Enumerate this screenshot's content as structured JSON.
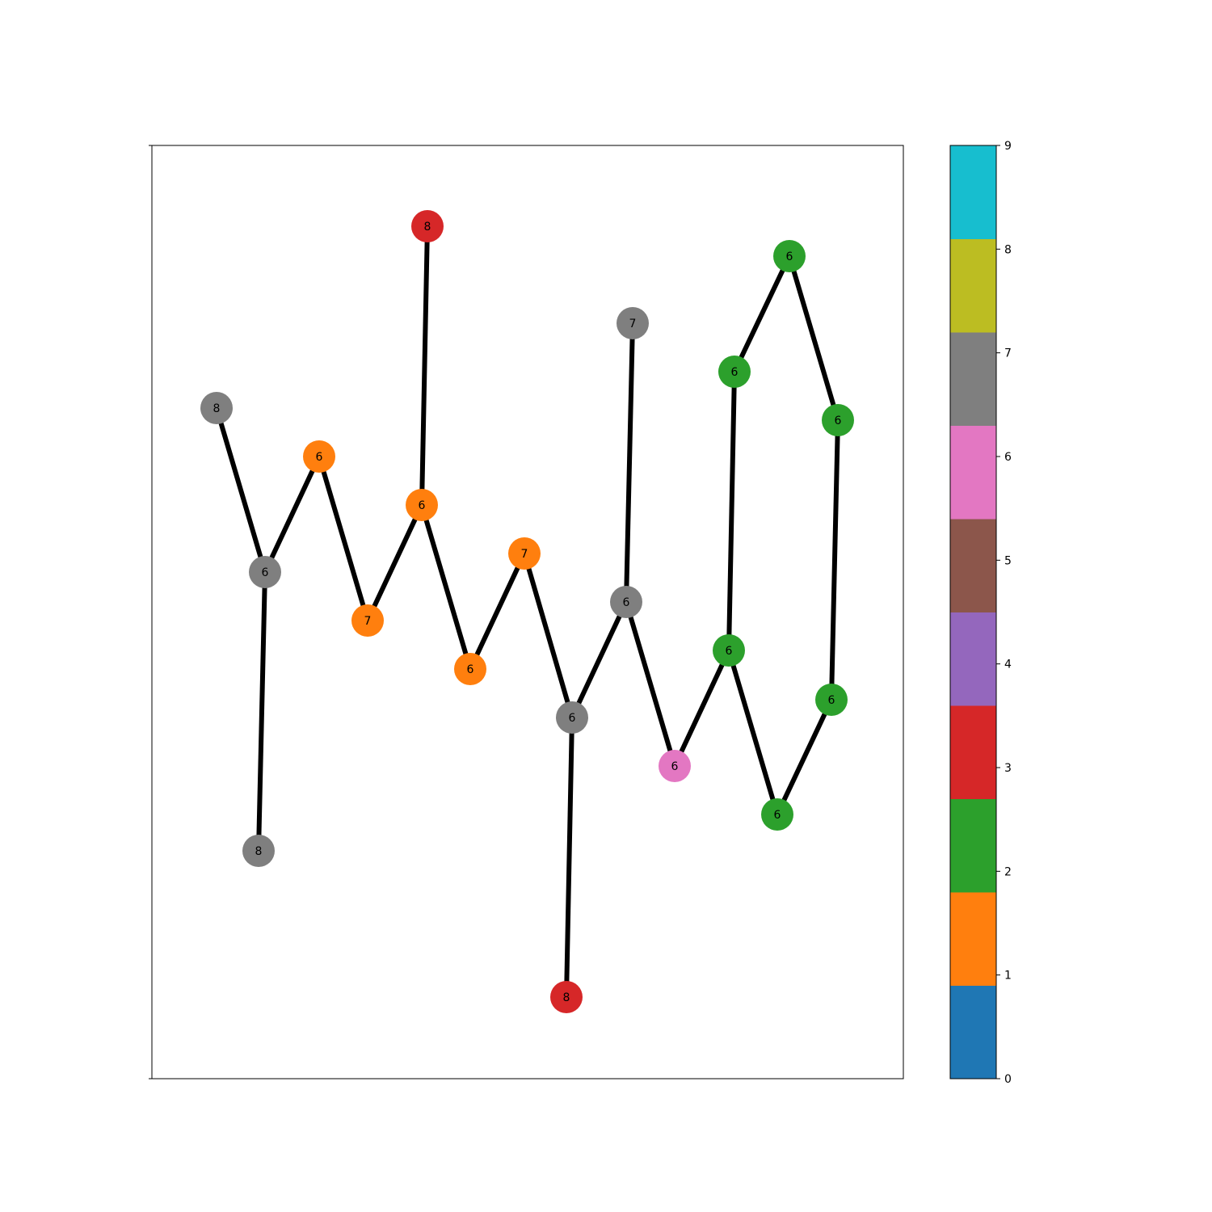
{
  "graph": {
    "edge_color": "#000000",
    "nodes": [
      {
        "id": "n1",
        "label": "8",
        "color": "#7f7f7f"
      },
      {
        "id": "n2",
        "label": "6",
        "color": "#7f7f7f"
      },
      {
        "id": "n3",
        "label": "8",
        "color": "#7f7f7f"
      },
      {
        "id": "n4",
        "label": "6",
        "color": "#ff7f0e"
      },
      {
        "id": "n5",
        "label": "7",
        "color": "#ff7f0e"
      },
      {
        "id": "n6",
        "label": "6",
        "color": "#ff7f0e"
      },
      {
        "id": "n7",
        "label": "8",
        "color": "#d62728"
      },
      {
        "id": "n8",
        "label": "6",
        "color": "#ff7f0e"
      },
      {
        "id": "n9",
        "label": "7",
        "color": "#ff7f0e"
      },
      {
        "id": "n10",
        "label": "6",
        "color": "#7f7f7f"
      },
      {
        "id": "n11",
        "label": "8",
        "color": "#d62728"
      },
      {
        "id": "n12",
        "label": "6",
        "color": "#7f7f7f"
      },
      {
        "id": "n13",
        "label": "7",
        "color": "#7f7f7f"
      },
      {
        "id": "n14",
        "label": "6",
        "color": "#e377c2"
      },
      {
        "id": "n15",
        "label": "6",
        "color": "#2ca02c"
      },
      {
        "id": "n16",
        "label": "6",
        "color": "#2ca02c"
      },
      {
        "id": "n17",
        "label": "6",
        "color": "#2ca02c"
      },
      {
        "id": "n18",
        "label": "6",
        "color": "#2ca02c"
      },
      {
        "id": "n19",
        "label": "6",
        "color": "#2ca02c"
      },
      {
        "id": "n20",
        "label": "6",
        "color": "#2ca02c"
      }
    ],
    "edges": [
      [
        "n1",
        "n2"
      ],
      [
        "n2",
        "n3"
      ],
      [
        "n2",
        "n4"
      ],
      [
        "n4",
        "n5"
      ],
      [
        "n5",
        "n6"
      ],
      [
        "n6",
        "n7"
      ],
      [
        "n6",
        "n8"
      ],
      [
        "n8",
        "n9"
      ],
      [
        "n9",
        "n10"
      ],
      [
        "n10",
        "n11"
      ],
      [
        "n10",
        "n12"
      ],
      [
        "n12",
        "n13"
      ],
      [
        "n12",
        "n14"
      ],
      [
        "n14",
        "n15"
      ],
      [
        "n15",
        "n16"
      ],
      [
        "n16",
        "n17"
      ],
      [
        "n17",
        "n18"
      ],
      [
        "n18",
        "n19"
      ],
      [
        "n19",
        "n20"
      ],
      [
        "n20",
        "n15"
      ]
    ]
  },
  "colorbar": {
    "min": 0,
    "max": 9,
    "colors": [
      "#1f77b4",
      "#ff7f0e",
      "#2ca02c",
      "#d62728",
      "#9467bd",
      "#8c564b",
      "#e377c2",
      "#7f7f7f",
      "#bcbd22",
      "#17becf"
    ],
    "ticks": [
      "0",
      "1",
      "2",
      "3",
      "4",
      "5",
      "6",
      "7",
      "8",
      "9"
    ]
  }
}
